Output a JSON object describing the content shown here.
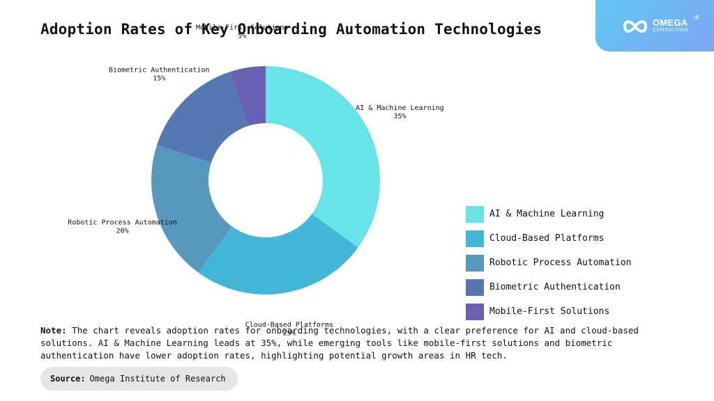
{
  "title": "Adoption Rates of Key Onboarding Automation Technologies",
  "brand": {
    "name": "OMEGA",
    "sub": "CONSULTING",
    "reg": "®"
  },
  "chart_data": {
    "type": "pie",
    "donut": true,
    "categories": [
      "AI & Machine Learning",
      "Cloud-Based Platforms",
      "Robotic Process Automation",
      "Biometric Authentication",
      "Mobile-First Solutions"
    ],
    "values": [
      35,
      25,
      20,
      15,
      5
    ],
    "value_labels": [
      "35%",
      "25%",
      "20%",
      "15%",
      "5%"
    ],
    "colors": [
      "#68e4e9",
      "#42b7d8",
      "#5898be",
      "#5577b2",
      "#6a60b3"
    ],
    "legend_position": "right"
  },
  "note": {
    "label": "Note:",
    "text": "The chart reveals adoption rates for onboarding technologies, with a clear preference for AI and cloud-based solutions. AI & Machine Learning leads at 35%, while emerging tools like mobile-first solutions and biometric authentication have lower adoption rates, highlighting potential growth areas in HR tech."
  },
  "source": {
    "label": "Source:",
    "text": "Omega Institute of Research"
  }
}
